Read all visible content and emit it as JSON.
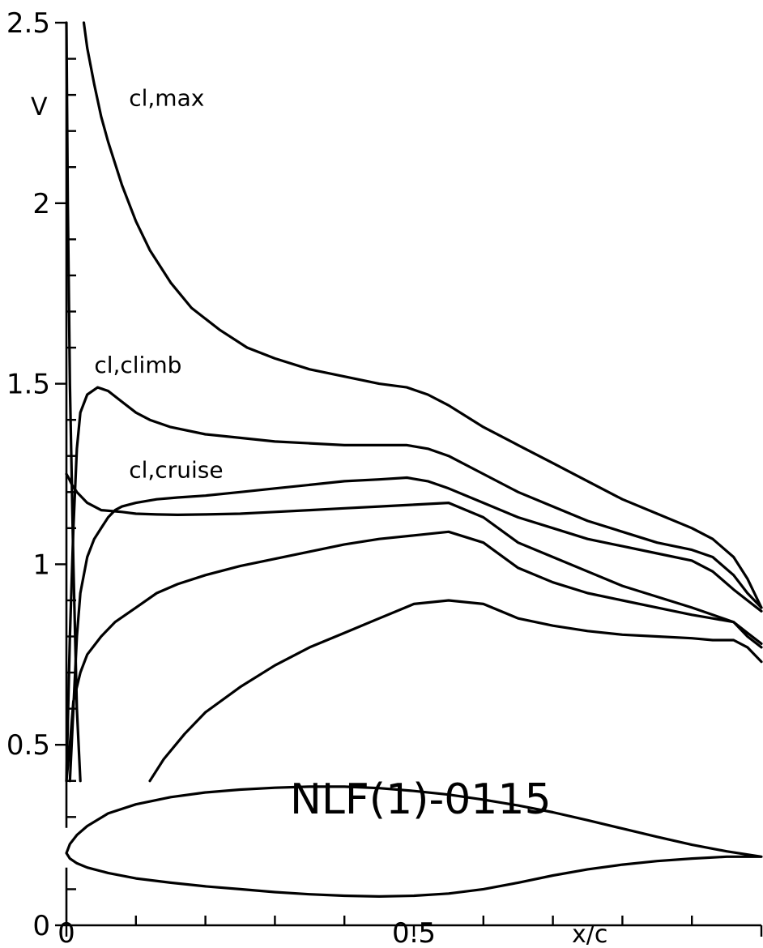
{
  "chart_data": {
    "type": "line",
    "title": "",
    "xlabel": "x/c",
    "ylabel": "V",
    "xlim": [
      0,
      1.0
    ],
    "ylim": [
      0,
      2.5
    ],
    "x_ticks": [
      0,
      0.5
    ],
    "x_tick_labels": [
      "0",
      "0.5"
    ],
    "y_ticks": [
      0,
      0.5,
      1,
      1.5,
      2,
      2.5
    ],
    "y_tick_labels": [
      "0",
      "0.5",
      "1",
      "1.5",
      "2",
      "2.5"
    ],
    "grid": false,
    "legend": "none",
    "airfoil_name": "NLF(1)-0115",
    "series_labels": [
      {
        "text": "cl,max",
        "x": 0.09,
        "y": 2.27
      },
      {
        "text": "cl,climb",
        "x": 0.04,
        "y": 1.53
      },
      {
        "text": "cl,cruise",
        "x": 0.09,
        "y": 1.24
      }
    ],
    "series": [
      {
        "name": "cl,max",
        "role": "upper",
        "x": [
          0.025,
          0.03,
          0.04,
          0.05,
          0.06,
          0.08,
          0.1,
          0.12,
          0.15,
          0.18,
          0.22,
          0.26,
          0.3,
          0.35,
          0.4,
          0.45,
          0.49,
          0.52,
          0.55,
          0.6,
          0.65,
          0.7,
          0.75,
          0.8,
          0.85,
          0.9,
          0.93,
          0.96,
          0.98,
          1.0
        ],
        "y": [
          2.5,
          2.43,
          2.33,
          2.24,
          2.17,
          2.05,
          1.95,
          1.87,
          1.78,
          1.71,
          1.65,
          1.6,
          1.57,
          1.54,
          1.52,
          1.5,
          1.49,
          1.47,
          1.44,
          1.38,
          1.33,
          1.28,
          1.23,
          1.18,
          1.14,
          1.1,
          1.07,
          1.02,
          0.96,
          0.88
        ]
      },
      {
        "name": "cl,climb",
        "role": "upper",
        "x": [
          0.0,
          0.005,
          0.01,
          0.015,
          0.02,
          0.03,
          0.045,
          0.06,
          0.08,
          0.1,
          0.12,
          0.15,
          0.2,
          0.25,
          0.3,
          0.35,
          0.4,
          0.45,
          0.49,
          0.52,
          0.55,
          0.6,
          0.65,
          0.7,
          0.75,
          0.8,
          0.85,
          0.9,
          0.93,
          0.96,
          0.98,
          1.0
        ],
        "y": [
          0.4,
          0.8,
          1.1,
          1.32,
          1.42,
          1.47,
          1.49,
          1.48,
          1.45,
          1.42,
          1.4,
          1.38,
          1.36,
          1.35,
          1.34,
          1.335,
          1.33,
          1.33,
          1.33,
          1.32,
          1.3,
          1.25,
          1.2,
          1.16,
          1.12,
          1.09,
          1.06,
          1.04,
          1.02,
          0.97,
          0.92,
          0.88
        ]
      },
      {
        "name": "cl,cruise",
        "role": "upper",
        "x": [
          0.005,
          0.01,
          0.015,
          0.02,
          0.03,
          0.04,
          0.05,
          0.06,
          0.07,
          0.08,
          0.1,
          0.13,
          0.16,
          0.2,
          0.25,
          0.3,
          0.35,
          0.4,
          0.45,
          0.49,
          0.52,
          0.55,
          0.6,
          0.65,
          0.7,
          0.75,
          0.8,
          0.85,
          0.9,
          0.93,
          0.96,
          0.98,
          1.0
        ],
        "y": [
          0.4,
          0.6,
          0.8,
          0.92,
          1.02,
          1.07,
          1.1,
          1.13,
          1.15,
          1.16,
          1.17,
          1.18,
          1.185,
          1.19,
          1.2,
          1.21,
          1.22,
          1.23,
          1.235,
          1.24,
          1.23,
          1.21,
          1.17,
          1.13,
          1.1,
          1.07,
          1.05,
          1.03,
          1.01,
          0.98,
          0.93,
          0.9,
          0.87
        ]
      },
      {
        "name": "cl,climb",
        "role": "lower",
        "x": [
          0.0,
          0.003,
          0.008,
          0.015,
          0.03,
          0.05,
          0.08,
          0.1,
          0.13,
          0.16,
          0.2,
          0.25,
          0.3,
          0.35,
          0.4,
          0.45,
          0.5,
          0.55,
          0.6,
          0.65,
          0.7,
          0.75,
          0.8,
          0.85,
          0.9,
          0.93,
          0.96,
          0.98,
          1.0
        ],
        "y": [
          1.25,
          1.24,
          1.22,
          1.2,
          1.17,
          1.15,
          1.145,
          1.14,
          1.138,
          1.137,
          1.138,
          1.14,
          1.145,
          1.15,
          1.155,
          1.16,
          1.165,
          1.17,
          1.13,
          1.06,
          1.02,
          0.98,
          0.94,
          0.91,
          0.88,
          0.86,
          0.84,
          0.81,
          0.78
        ]
      },
      {
        "name": "cl,cruise",
        "role": "lower",
        "x": [
          0.0,
          0.005,
          0.01,
          0.02,
          0.03,
          0.05,
          0.07,
          0.1,
          0.13,
          0.16,
          0.2,
          0.25,
          0.3,
          0.35,
          0.4,
          0.45,
          0.5,
          0.55,
          0.6,
          0.65,
          0.7,
          0.75,
          0.8,
          0.85,
          0.9,
          0.93,
          0.96,
          0.98,
          1.0
        ],
        "y": [
          0.4,
          0.5,
          0.62,
          0.7,
          0.75,
          0.8,
          0.84,
          0.88,
          0.92,
          0.945,
          0.97,
          0.995,
          1.015,
          1.035,
          1.055,
          1.07,
          1.08,
          1.09,
          1.06,
          0.99,
          0.95,
          0.92,
          0.9,
          0.88,
          0.86,
          0.85,
          0.84,
          0.8,
          0.77
        ]
      },
      {
        "name": "cl,max",
        "role": "lower",
        "x": [
          0.12,
          0.14,
          0.17,
          0.2,
          0.25,
          0.3,
          0.35,
          0.4,
          0.45,
          0.5,
          0.55,
          0.6,
          0.65,
          0.7,
          0.75,
          0.8,
          0.85,
          0.9,
          0.93,
          0.96,
          0.98,
          1.0
        ],
        "y": [
          0.4,
          0.46,
          0.53,
          0.59,
          0.66,
          0.72,
          0.77,
          0.81,
          0.85,
          0.89,
          0.9,
          0.89,
          0.85,
          0.83,
          0.815,
          0.805,
          0.8,
          0.795,
          0.79,
          0.79,
          0.77,
          0.73
        ]
      },
      {
        "name": "",
        "role": "leading-edge spike",
        "x": [
          0.0,
          0.002,
          0.005,
          0.01,
          0.015,
          0.02
        ],
        "y": [
          2.5,
          2.0,
          1.5,
          1.0,
          0.6,
          0.4
        ]
      }
    ],
    "airfoil": {
      "upper": {
        "x": [
          0.0,
          0.005,
          0.015,
          0.03,
          0.06,
          0.1,
          0.15,
          0.2,
          0.25,
          0.3,
          0.35,
          0.4,
          0.45,
          0.5,
          0.55,
          0.6,
          0.65,
          0.7,
          0.75,
          0.8,
          0.85,
          0.9,
          0.95,
          1.0
        ],
        "y": [
          0.2,
          0.225,
          0.25,
          0.275,
          0.31,
          0.335,
          0.355,
          0.368,
          0.376,
          0.381,
          0.384,
          0.384,
          0.38,
          0.372,
          0.362,
          0.348,
          0.332,
          0.313,
          0.291,
          0.268,
          0.245,
          0.223,
          0.205,
          0.19
        ]
      },
      "lower": {
        "x": [
          0.0,
          0.005,
          0.015,
          0.03,
          0.06,
          0.1,
          0.15,
          0.2,
          0.25,
          0.3,
          0.35,
          0.4,
          0.45,
          0.5,
          0.55,
          0.6,
          0.65,
          0.7,
          0.75,
          0.8,
          0.85,
          0.9,
          0.95,
          1.0
        ],
        "y": [
          0.2,
          0.185,
          0.172,
          0.16,
          0.145,
          0.13,
          0.118,
          0.108,
          0.1,
          0.092,
          0.086,
          0.082,
          0.08,
          0.082,
          0.088,
          0.1,
          0.118,
          0.138,
          0.155,
          0.168,
          0.178,
          0.185,
          0.19,
          0.19
        ]
      }
    }
  }
}
